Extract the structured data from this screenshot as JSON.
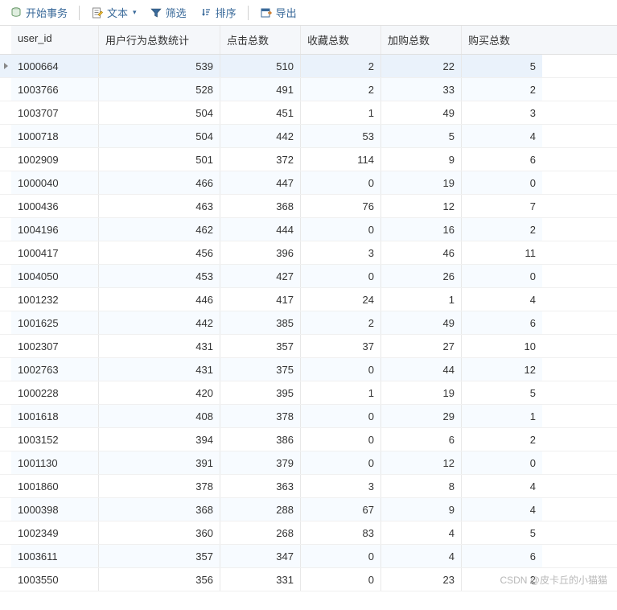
{
  "toolbar": {
    "begin_tx": "开始事务",
    "text": "文本",
    "filter": "筛选",
    "sort": "排序",
    "export": "导出"
  },
  "columns": [
    "user_id",
    "用户行为总数统计",
    "点击总数",
    "收藏总数",
    "加购总数",
    "购买总数"
  ],
  "rows": [
    [
      "1000664",
      "539",
      "510",
      "2",
      "22",
      "5"
    ],
    [
      "1003766",
      "528",
      "491",
      "2",
      "33",
      "2"
    ],
    [
      "1003707",
      "504",
      "451",
      "1",
      "49",
      "3"
    ],
    [
      "1000718",
      "504",
      "442",
      "53",
      "5",
      "4"
    ],
    [
      "1002909",
      "501",
      "372",
      "114",
      "9",
      "6"
    ],
    [
      "1000040",
      "466",
      "447",
      "0",
      "19",
      "0"
    ],
    [
      "1000436",
      "463",
      "368",
      "76",
      "12",
      "7"
    ],
    [
      "1004196",
      "462",
      "444",
      "0",
      "16",
      "2"
    ],
    [
      "1000417",
      "456",
      "396",
      "3",
      "46",
      "11"
    ],
    [
      "1004050",
      "453",
      "427",
      "0",
      "26",
      "0"
    ],
    [
      "1001232",
      "446",
      "417",
      "24",
      "1",
      "4"
    ],
    [
      "1001625",
      "442",
      "385",
      "2",
      "49",
      "6"
    ],
    [
      "1002307",
      "431",
      "357",
      "37",
      "27",
      "10"
    ],
    [
      "1002763",
      "431",
      "375",
      "0",
      "44",
      "12"
    ],
    [
      "1000228",
      "420",
      "395",
      "1",
      "19",
      "5"
    ],
    [
      "1001618",
      "408",
      "378",
      "0",
      "29",
      "1"
    ],
    [
      "1003152",
      "394",
      "386",
      "0",
      "6",
      "2"
    ],
    [
      "1001130",
      "391",
      "379",
      "0",
      "12",
      "0"
    ],
    [
      "1001860",
      "378",
      "363",
      "3",
      "8",
      "4"
    ],
    [
      "1000398",
      "368",
      "288",
      "67",
      "9",
      "4"
    ],
    [
      "1002349",
      "360",
      "268",
      "83",
      "4",
      "5"
    ],
    [
      "1003611",
      "357",
      "347",
      "0",
      "4",
      "6"
    ],
    [
      "1003550",
      "356",
      "331",
      "0",
      "23",
      "2"
    ]
  ],
  "selected_row": 0,
  "alt_rows": [
    1,
    3,
    5,
    7,
    9,
    11,
    13,
    15,
    17,
    19,
    21
  ],
  "watermark": "CSDN @皮卡丘的小猫猫"
}
